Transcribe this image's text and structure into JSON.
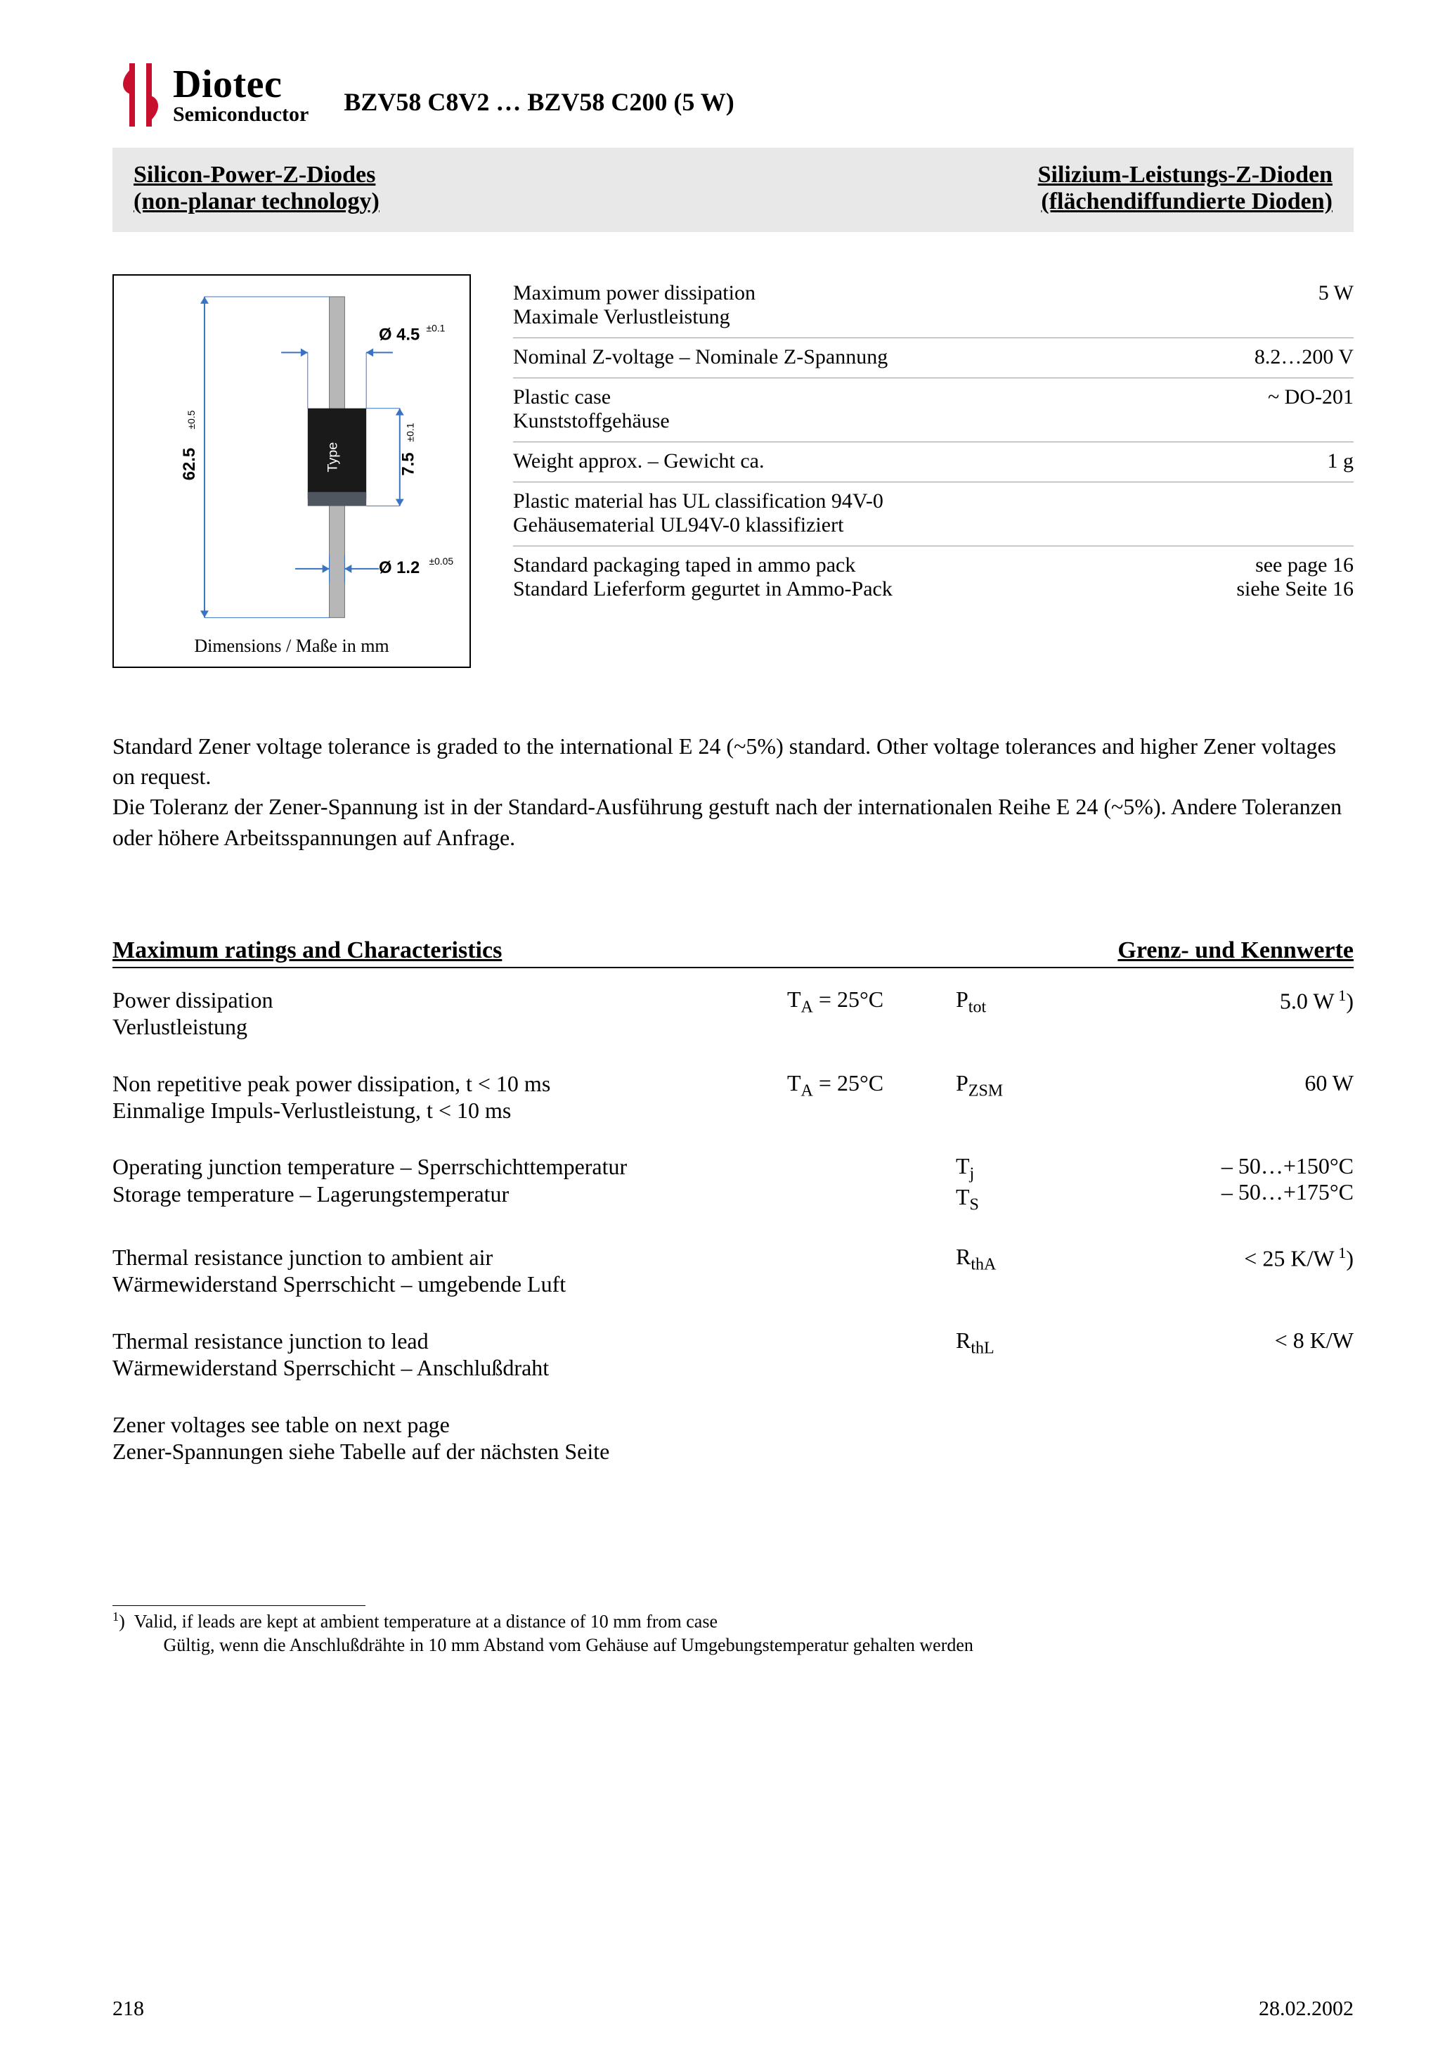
{
  "logo": {
    "name": "Diotec",
    "sub": "Semiconductor",
    "color": "#c8102e"
  },
  "part_title": "BZV58 C8V2 … BZV58 C200 (5 W)",
  "greybox": {
    "left_line1": "Silicon-Power-Z-Diodes",
    "left_line2": "(non-planar technology)",
    "right_line1": "Silizium-Leistungs-Z-Dioden",
    "right_line2": "(flächendiffundierte Dioden)"
  },
  "diagram": {
    "caption": "Dimensions / Maße in mm",
    "body_len": "62.5",
    "body_len_tol": "±0.5",
    "lead_dia": "Ø 1.2",
    "lead_dia_tol": "±0.05",
    "case_dia": "Ø 4.5",
    "case_dia_tol": "±0.1",
    "case_len": "7.5",
    "case_len_tol": "±0.1",
    "type_label": "Type",
    "colors": {
      "lead": "#b7b7b7",
      "lead_edge": "#6d6d6d",
      "case": "#1a1a1a",
      "band": "#50565f",
      "dim": "#3a73c2"
    }
  },
  "specs": [
    {
      "label_en": "Maximum power dissipation",
      "label_de": "Maximale Verlustleistung",
      "value": "5 W"
    },
    {
      "label_en": "Nominal Z-voltage – Nominale Z-Spannung",
      "label_de": "",
      "value": "8.2…200 V"
    },
    {
      "label_en": "Plastic case",
      "label_de": "Kunststoffgehäuse",
      "value": "~ DO-201"
    },
    {
      "label_en": "Weight approx. – Gewicht ca.",
      "label_de": "",
      "value": "1 g"
    },
    {
      "label_en": "Plastic material has UL classification 94V-0",
      "label_de": "Gehäusematerial UL94V-0 klassifiziert",
      "value": ""
    },
    {
      "label_en": "Standard packaging taped in ammo pack",
      "label_de": "Standard Lieferform gegurtet in Ammo-Pack",
      "value": "see page 16\nsiehe Seite 16"
    }
  ],
  "paragraph": "Standard Zener voltage tolerance is graded to the international E 24 (~5%) standard. Other voltage tolerances and higher Zener voltages on request.\nDie Toleranz der Zener-Spannung ist in der Standard-Ausführung gestuft nach der internationalen Reihe E 24 (~5%). Andere Toleranzen oder höhere Arbeitsspannungen auf Anfrage.",
  "ratings_head": {
    "left": "Maximum ratings and Characteristics",
    "right": "Grenz- und Kennwerte"
  },
  "ratings": [
    {
      "desc_en": "Power dissipation",
      "desc_de": "Verlustleistung",
      "cond_html": "T<sub>A</sub> = 25°C",
      "sym_html": "P<sub>tot</sub>",
      "val_html": "5.0 W<sup> 1</sup>)"
    },
    {
      "desc_en": "Non repetitive peak power dissipation, t < 10 ms",
      "desc_de": "Einmalige Impuls-Verlustleistung, t < 10 ms",
      "cond_html": "T<sub>A</sub> = 25°C",
      "sym_html": "P<sub>ZSM</sub>",
      "val_html": "60 W"
    },
    {
      "desc_en": "Operating junction temperature – Sperrschichttemperatur",
      "desc_de": "Storage temperature – Lagerungstemperatur",
      "cond_html": "",
      "sym_html": "T<sub>j</sub><br>T<sub>S</sub>",
      "val_html": "– 50…+150°C<br>– 50…+175°C"
    },
    {
      "desc_en": "Thermal resistance junction to ambient air",
      "desc_de": "Wärmewiderstand Sperrschicht – umgebende Luft",
      "cond_html": "",
      "sym_html": "R<sub>thA</sub>",
      "val_html": "< 25 K/W<sup> 1</sup>)"
    },
    {
      "desc_en": "Thermal resistance junction to lead",
      "desc_de": "Wärmewiderstand Sperrschicht – Anschlußdraht",
      "cond_html": "",
      "sym_html": "R<sub>thL</sub>",
      "val_html": "< 8 K/W"
    },
    {
      "desc_en": "Zener voltages see table on next page",
      "desc_de": "Zener-Spannungen siehe Tabelle auf der nächsten Seite",
      "cond_html": "",
      "sym_html": "",
      "val_html": ""
    }
  ],
  "footnote": {
    "marker": "1",
    "en": "Valid, if leads are kept at ambient temperature at a distance of 10 mm from case",
    "de": "Gültig, wenn die Anschlußdrähte in 10 mm Abstand vom Gehäuse auf Umgebungstemperatur gehalten werden"
  },
  "footer": {
    "page": "218",
    "date": "28.02.2002"
  }
}
